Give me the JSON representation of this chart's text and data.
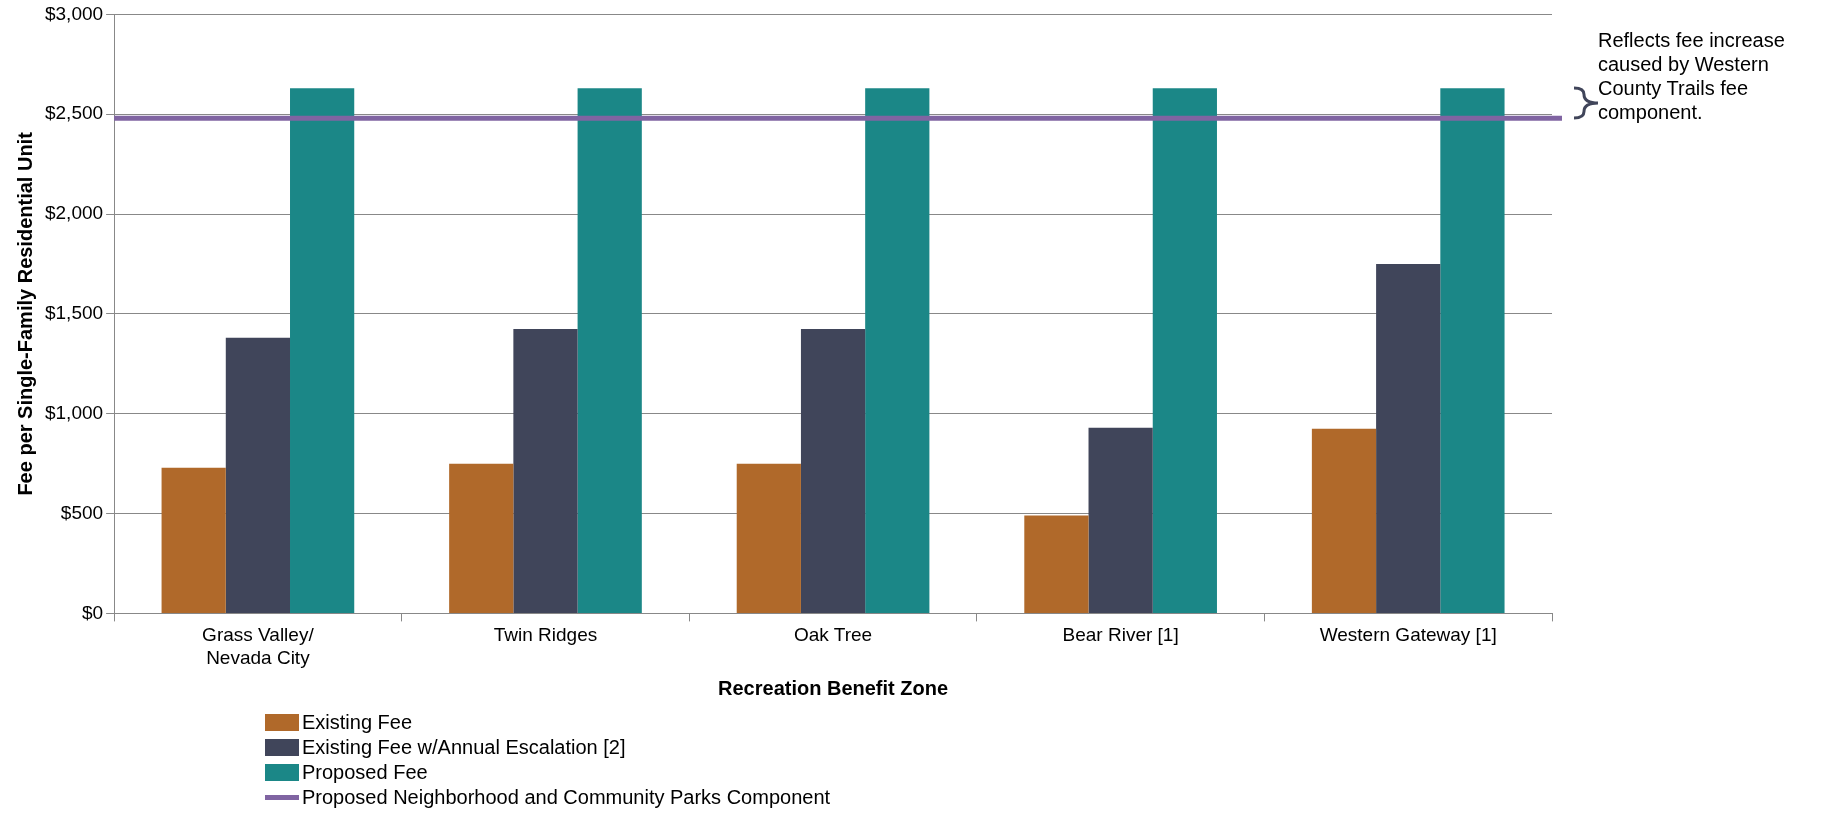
{
  "chart_data": {
    "type": "bar",
    "xlabel": "Recreation Benefit Zone",
    "ylabel": "Fee per Single-Family Residential Unit",
    "categories": [
      "Grass Valley/\nNevada City",
      "Twin Ridges",
      "Oak Tree",
      "Bear River [1]",
      "Western Gateway [1]"
    ],
    "series": [
      {
        "name": "Existing Fee",
        "color": "#b0692a",
        "values": [
          730,
          750,
          750,
          490,
          925
        ]
      },
      {
        "name": "Existing Fee w/Annual Escalation [2]",
        "color": "#40455a",
        "values": [
          1380,
          1425,
          1425,
          930,
          1750
        ]
      },
      {
        "name": "Proposed Fee",
        "color": "#1b8787",
        "values": [
          2630,
          2630,
          2630,
          2630,
          2630
        ]
      }
    ],
    "ref_lines": [
      {
        "axis": "y",
        "value": 2480,
        "label": "Proposed Neighborhood and Community Parks Component",
        "color": "#8064a2"
      }
    ],
    "annotations": [
      "Reflects fee increase caused by Western County Trails fee component."
    ],
    "ylim": [
      0,
      3000
    ],
    "yticks": [
      {
        "value": 0,
        "label": "$0"
      },
      {
        "value": 500,
        "label": "$500"
      },
      {
        "value": 1000,
        "label": "$1,000"
      },
      {
        "value": 1500,
        "label": "$1,500"
      },
      {
        "value": 2000,
        "label": "$2,000"
      },
      {
        "value": 2500,
        "label": "$2,500"
      },
      {
        "value": 3000,
        "label": "$3,000"
      }
    ],
    "grid": "y",
    "legend": "bottom"
  }
}
